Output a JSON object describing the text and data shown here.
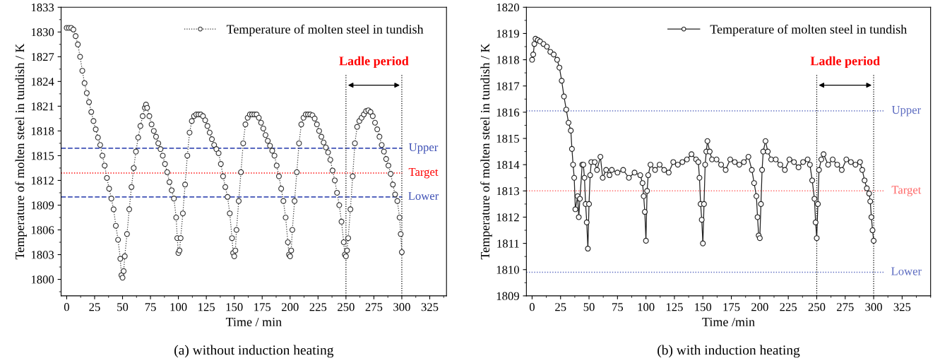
{
  "chart_data": [
    {
      "type": "line",
      "title": "(a) without induction heating",
      "xlabel": "Time / min",
      "ylabel": "Temperature of molten steel in tundish / K",
      "xlim": [
        -5,
        340
      ],
      "xticks": [
        0,
        25,
        50,
        75,
        100,
        125,
        150,
        175,
        200,
        225,
        250,
        275,
        300,
        325
      ],
      "ylim": [
        1798,
        1833
      ],
      "yticks": [
        1800,
        1803,
        1806,
        1809,
        1812,
        1815,
        1818,
        1821,
        1824,
        1827,
        1830,
        1833
      ],
      "marker": "circle",
      "line_style": "dotted",
      "legend": "top right",
      "grid": false,
      "series": [
        {
          "name": "Temperature of molten steel in tundish",
          "color": "#333333",
          "x": [
            0,
            2,
            4,
            6,
            8,
            10,
            12,
            14,
            16,
            18,
            20,
            22,
            24,
            26,
            28,
            30,
            32,
            34,
            36,
            38,
            40,
            42,
            44,
            46,
            48,
            49,
            50,
            51,
            52,
            54,
            56,
            58,
            60,
            62,
            64,
            66,
            68,
            70,
            71,
            72,
            74,
            76,
            78,
            80,
            82,
            84,
            86,
            88,
            90,
            92,
            94,
            96,
            98,
            99,
            100,
            101,
            102,
            104,
            106,
            108,
            110,
            112,
            114,
            116,
            118,
            120,
            122,
            124,
            126,
            128,
            130,
            132,
            134,
            136,
            138,
            140,
            142,
            144,
            146,
            148,
            149,
            150,
            151,
            152,
            154,
            156,
            158,
            160,
            162,
            164,
            166,
            168,
            170,
            172,
            174,
            176,
            178,
            180,
            182,
            184,
            186,
            188,
            190,
            192,
            194,
            196,
            198,
            199,
            200,
            201,
            202,
            204,
            206,
            208,
            210,
            212,
            214,
            216,
            218,
            220,
            222,
            224,
            226,
            228,
            230,
            232,
            234,
            236,
            238,
            240,
            242,
            244,
            246,
            248,
            249,
            250,
            251,
            252,
            254,
            256,
            258,
            260,
            262,
            264,
            266,
            268,
            270,
            272,
            274,
            276,
            278,
            280,
            282,
            284,
            286,
            288,
            290,
            292,
            294,
            296,
            298,
            299,
            300
          ],
          "values": [
            1830.5,
            1830.5,
            1830.5,
            1830.3,
            1829.5,
            1828.5,
            1827,
            1825.3,
            1823.8,
            1822.6,
            1821.5,
            1820.3,
            1819.2,
            1818.2,
            1817.2,
            1816.3,
            1815,
            1813.8,
            1812.3,
            1811,
            1809.8,
            1808.5,
            1806.5,
            1804.8,
            1802.5,
            1800.5,
            1800.2,
            1801,
            1802.8,
            1805.5,
            1808.5,
            1811.2,
            1813.5,
            1815.5,
            1817.2,
            1818.6,
            1819.8,
            1820.8,
            1821.2,
            1820.8,
            1819.8,
            1818.8,
            1818,
            1817.3,
            1816.5,
            1815.8,
            1815,
            1814,
            1813,
            1811.8,
            1810.8,
            1809.8,
            1807.5,
            1805,
            1803.2,
            1803.5,
            1805,
            1808,
            1811.5,
            1815,
            1817.8,
            1819.2,
            1819.8,
            1820,
            1820,
            1820,
            1819.8,
            1819.3,
            1818.6,
            1817.8,
            1817,
            1816.3,
            1815.8,
            1815.3,
            1814,
            1812.5,
            1811.2,
            1810,
            1808,
            1805,
            1803.2,
            1802.8,
            1803.5,
            1806,
            1809.5,
            1813,
            1816.5,
            1818.8,
            1819.6,
            1820,
            1820,
            1820,
            1820,
            1819.6,
            1819,
            1818.3,
            1817.5,
            1816.8,
            1816.2,
            1815.6,
            1815,
            1813.8,
            1812.5,
            1811,
            1809.5,
            1807.5,
            1804.5,
            1803,
            1802.8,
            1803.5,
            1806,
            1809.5,
            1813,
            1816.5,
            1818.8,
            1819.6,
            1820,
            1820,
            1820,
            1819.9,
            1819.5,
            1818.8,
            1818,
            1817.3,
            1816.6,
            1816,
            1815.4,
            1814.5,
            1813.2,
            1812,
            1810.5,
            1809,
            1807,
            1804.5,
            1803,
            1802.8,
            1803.5,
            1805,
            1808.5,
            1812.5,
            1816.5,
            1818.5,
            1819.2,
            1819.6,
            1820,
            1820.4,
            1820.5,
            1820.3,
            1819.8,
            1819,
            1818.2,
            1817.3,
            1816.3,
            1815.5,
            1814.6,
            1813.8,
            1812.8,
            1811.5,
            1810.3,
            1809.5,
            1807.5,
            1805.5,
            1803.3
          ]
        }
      ],
      "ref_lines": [
        {
          "axis": "y",
          "value": 1815.9,
          "label": "Upper",
          "color": "#3f51b5",
          "line_style": "dashed"
        },
        {
          "axis": "y",
          "value": 1812.9,
          "label": "Target",
          "color": "#ff0000",
          "line_style": "dotted"
        },
        {
          "axis": "y",
          "value": 1810,
          "label": "Lower",
          "color": "#3f51b5",
          "line_style": "dashed"
        },
        {
          "axis": "x",
          "value": 250,
          "color": "#000000",
          "line_style": "dotted"
        },
        {
          "axis": "x",
          "value": 300,
          "color": "#000000",
          "line_style": "dotted"
        }
      ],
      "annotations": [
        "Ladle period"
      ]
    },
    {
      "type": "line",
      "title": "(b) with induction heating",
      "xlabel": "Time /min",
      "ylabel": "Temperature of molten steel in tundish / K",
      "xlim": [
        -5,
        350
      ],
      "xticks": [
        0,
        25,
        50,
        75,
        100,
        125,
        150,
        175,
        200,
        225,
        250,
        275,
        300,
        325
      ],
      "ylim": [
        1809,
        1820
      ],
      "yticks": [
        1809,
        1810,
        1811,
        1812,
        1813,
        1814,
        1815,
        1816,
        1817,
        1818,
        1819,
        1820
      ],
      "marker": "circle",
      "line_style": "solid",
      "legend": "top right",
      "grid": false,
      "series": [
        {
          "name": "Temperature of molten steel in tundish",
          "color": "#222222",
          "x": [
            0,
            1,
            2,
            3,
            5,
            7,
            10,
            13,
            16,
            19,
            22,
            24,
            26,
            28,
            30,
            32,
            34,
            35,
            36,
            37,
            38,
            40,
            41,
            42,
            44,
            45,
            46,
            47,
            48,
            49,
            50,
            51,
            52,
            55,
            57,
            60,
            62,
            65,
            68,
            70,
            75,
            80,
            85,
            90,
            95,
            97,
            98,
            99,
            100,
            101,
            102,
            104,
            108,
            112,
            116,
            120,
            124,
            128,
            132,
            136,
            140,
            144,
            146,
            147,
            148,
            149,
            150,
            151,
            152,
            153,
            154,
            156,
            158,
            162,
            166,
            170,
            174,
            178,
            182,
            186,
            190,
            193,
            195,
            197,
            198,
            199,
            200,
            201,
            202,
            203,
            205,
            207,
            210,
            214,
            218,
            222,
            226,
            230,
            234,
            238,
            242,
            244,
            246,
            248,
            249,
            250,
            251,
            252,
            254,
            256,
            260,
            264,
            268,
            272,
            276,
            280,
            284,
            288,
            290,
            292,
            294,
            296,
            297,
            298,
            299,
            300
          ],
          "values": [
            1818,
            1818.2,
            1818.6,
            1818.8,
            1818.75,
            1818.7,
            1818.6,
            1818.5,
            1818.3,
            1818.2,
            1818,
            1817.7,
            1817.2,
            1816.6,
            1816.1,
            1815.6,
            1815.3,
            1814.6,
            1814,
            1813.5,
            1812.3,
            1812.8,
            1812,
            1812.7,
            1814,
            1814,
            1813.5,
            1812.5,
            1811.8,
            1810.8,
            1812.5,
            1813.6,
            1814.1,
            1814.1,
            1813.8,
            1814.3,
            1813.5,
            1813.8,
            1813.6,
            1813.8,
            1813.7,
            1813.8,
            1813.5,
            1813.7,
            1813.6,
            1813.3,
            1812.8,
            1812.2,
            1811.1,
            1813,
            1813.6,
            1814,
            1813.8,
            1814,
            1813.8,
            1813.7,
            1814.1,
            1814,
            1814.1,
            1814.2,
            1814.4,
            1814.2,
            1814.1,
            1813.5,
            1812.5,
            1811.9,
            1811,
            1812.5,
            1814,
            1814.5,
            1814.9,
            1814.5,
            1814.2,
            1814.2,
            1814,
            1813.8,
            1814.2,
            1814.1,
            1814,
            1814.1,
            1814.3,
            1813.8,
            1813.3,
            1812.8,
            1812,
            1811.3,
            1811.2,
            1812.5,
            1813.8,
            1814.5,
            1814.9,
            1814.5,
            1814.2,
            1814.2,
            1814,
            1813.8,
            1814.2,
            1814.1,
            1813.9,
            1814.1,
            1814.2,
            1814,
            1813.4,
            1812.7,
            1811.8,
            1811.2,
            1812.5,
            1813.8,
            1814.2,
            1814.4,
            1814,
            1814.2,
            1814,
            1813.8,
            1814.2,
            1814.1,
            1814,
            1814.1,
            1813.8,
            1813.4,
            1813.1,
            1812.9,
            1812.6,
            1812,
            1811.5,
            1811.1
          ]
        }
      ],
      "ref_lines": [
        {
          "axis": "y",
          "value": 1816.05,
          "label": "Upper",
          "color": "#5c6bc0",
          "line_style": "dotted"
        },
        {
          "axis": "y",
          "value": 1813,
          "label": "Target",
          "color": "#ff6666",
          "line_style": "dotted"
        },
        {
          "axis": "y",
          "value": 1809.9,
          "label": "Lower",
          "color": "#5c6bc0",
          "line_style": "dotted"
        },
        {
          "axis": "x",
          "value": 250,
          "color": "#000000",
          "line_style": "dotted"
        },
        {
          "axis": "x",
          "value": 300,
          "color": "#000000",
          "line_style": "dotted"
        }
      ],
      "annotations": [
        "Ladle period"
      ]
    }
  ]
}
